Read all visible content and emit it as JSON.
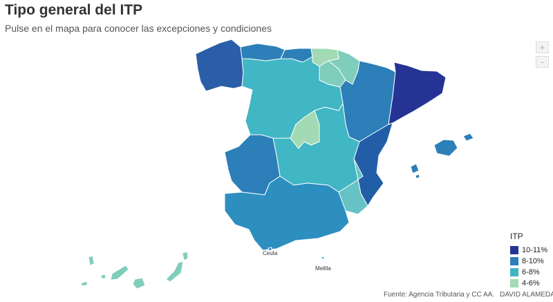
{
  "title": "Tipo general del ITP",
  "subtitle": "Pulse en el mapa para conocer las excepciones y condiciones",
  "zoom": {
    "in_label": "+",
    "out_label": "-"
  },
  "cities": {
    "ceuta": "Ceuta",
    "melilla": "Melilla"
  },
  "legend": {
    "title": "ITP",
    "items": [
      {
        "label": "10-11%",
        "color": "#253494"
      },
      {
        "label": "8-10%",
        "color": "#2c7fb8"
      },
      {
        "label": "6-8%",
        "color": "#41b6c4"
      },
      {
        "label": "4-6%",
        "color": "#a1dab4"
      }
    ]
  },
  "source": {
    "text": "Fuente: Agencia Tributaria y CC AA.",
    "author": "DAVID ALAMEDA"
  },
  "regions": [
    {
      "name": "Galicia",
      "range": "8-10%",
      "color": "#2b5ea8"
    },
    {
      "name": "Asturias",
      "range": "8-10%",
      "color": "#2c7fb8"
    },
    {
      "name": "Cantabria",
      "range": "8-10%",
      "color": "#2c7fb8"
    },
    {
      "name": "País Vasco",
      "range": "4-6%",
      "color": "#a1dab4"
    },
    {
      "name": "Navarra",
      "range": "6-8%",
      "color": "#7fcdbb"
    },
    {
      "name": "La Rioja",
      "range": "6-8%",
      "color": "#7fcdbb"
    },
    {
      "name": "Aragón",
      "range": "8-10%",
      "color": "#2c7fb8"
    },
    {
      "name": "Cataluña",
      "range": "10-11%",
      "color": "#253494"
    },
    {
      "name": "Castilla y León",
      "range": "6-8%",
      "color": "#41b6c4"
    },
    {
      "name": "Madrid",
      "range": "4-6%",
      "color": "#a1dab4"
    },
    {
      "name": "Castilla-La Mancha",
      "range": "6-8%",
      "color": "#41b6c4"
    },
    {
      "name": "Extremadura",
      "range": "8-10%",
      "color": "#2c7fb8"
    },
    {
      "name": "Comunidad Valenciana",
      "range": "10-11%",
      "color": "#225ea8"
    },
    {
      "name": "Murcia",
      "range": "6-8%",
      "color": "#66c2c4"
    },
    {
      "name": "Andalucía",
      "range": "8-10%",
      "color": "#2c8fbf"
    },
    {
      "name": "Islas Baleares",
      "range": "8-10%",
      "color": "#2c7fb8"
    },
    {
      "name": "Islas Canarias",
      "range": "6-8%",
      "color": "#7fcdbb"
    }
  ]
}
